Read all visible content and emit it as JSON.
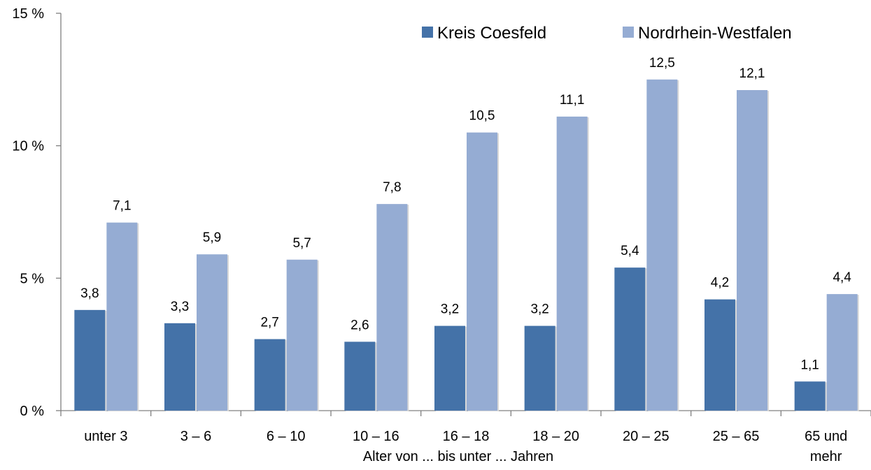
{
  "chart_data": {
    "type": "bar",
    "title": "",
    "xlabel": "Alter von ... bis unter ... Jahren",
    "ylabel": "",
    "ylim": [
      0,
      15
    ],
    "y_ticks": [
      {
        "value": 0,
        "label": "0 %"
      },
      {
        "value": 5,
        "label": "5 %"
      },
      {
        "value": 10,
        "label": "10 %"
      },
      {
        "value": 15,
        "label": "15 %"
      }
    ],
    "categories": [
      "unter 3",
      "3 –  6",
      "6 – 10",
      "10 – 16",
      "16 – 18",
      "18 – 20",
      "20 – 25",
      "25 – 65",
      "65 und mehr"
    ],
    "category_label_lines": [
      [
        "unter 3"
      ],
      [
        "3 –  6"
      ],
      [
        "6 – 10"
      ],
      [
        "10 – 16"
      ],
      [
        "16 – 18"
      ],
      [
        "18 – 20"
      ],
      [
        "20 – 25"
      ],
      [
        "25 – 65"
      ],
      [
        "65 und",
        "mehr"
      ]
    ],
    "series": [
      {
        "name": "Kreis Coesfeld",
        "color": "#4472a8",
        "values": [
          3.8,
          3.3,
          2.7,
          2.6,
          3.2,
          3.2,
          5.4,
          4.2,
          1.1
        ],
        "labels": [
          "3,8",
          "3,3",
          "2,7",
          "2,6",
          "3,2",
          "3,2",
          "5,4",
          "4,2",
          "1,1"
        ]
      },
      {
        "name": "Nordrhein-Westfalen",
        "color": "#95acd3",
        "values": [
          7.1,
          5.9,
          5.7,
          7.8,
          10.5,
          11.1,
          12.5,
          12.1,
          4.4
        ],
        "labels": [
          "7,1",
          "5,9",
          "5,7",
          "7,8",
          "10,5",
          "11,1",
          "12,5",
          "12,1",
          "4,4"
        ]
      }
    ],
    "grid": false,
    "legend_position": "top-right",
    "axis_color": "#808080"
  }
}
